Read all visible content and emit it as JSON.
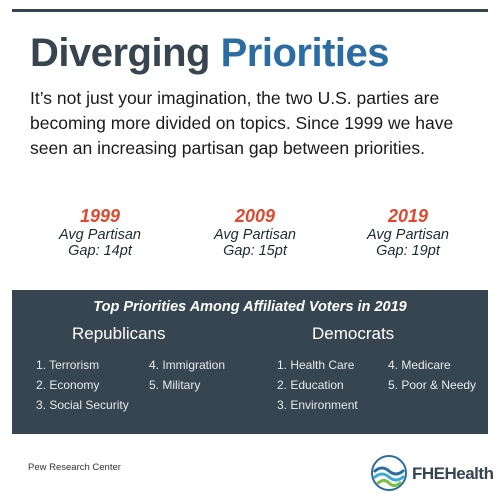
{
  "title": {
    "part1": "Diverging",
    "part2": "Priorities"
  },
  "intro": "It’s not just your imagination, the two U.S. parties are becoming more divided on topics. Since 1999 we have seen an increasing partisan gap between priorities.",
  "stats": [
    {
      "year": "1999",
      "line1": "Avg Partisan",
      "line2": "Gap: 14pt"
    },
    {
      "year": "2009",
      "line1": "Avg Partisan",
      "line2": "Gap: 15pt"
    },
    {
      "year": "2019",
      "line1": "Avg Partisan",
      "line2": "Gap: 19pt"
    }
  ],
  "panel": {
    "heading": "Top Priorities Among Affiliated Voters in 2019",
    "republicans": {
      "name": "Republicans",
      "items": [
        "1. Terrorism",
        "2. Economy",
        "3. Social Security",
        "4. Immigration",
        "5. Military"
      ]
    },
    "democrats": {
      "name": "Democrats",
      "items": [
        "1. Health Care",
        "2. Education",
        "3. Environment",
        "4. Medicare",
        "5. Poor & Needy"
      ]
    }
  },
  "source": "Pew Research Center",
  "logo": {
    "text": "FHEHealth"
  },
  "colors": {
    "dark": "#36454f",
    "blue": "#2b6ca3",
    "red": "#e0492f"
  }
}
